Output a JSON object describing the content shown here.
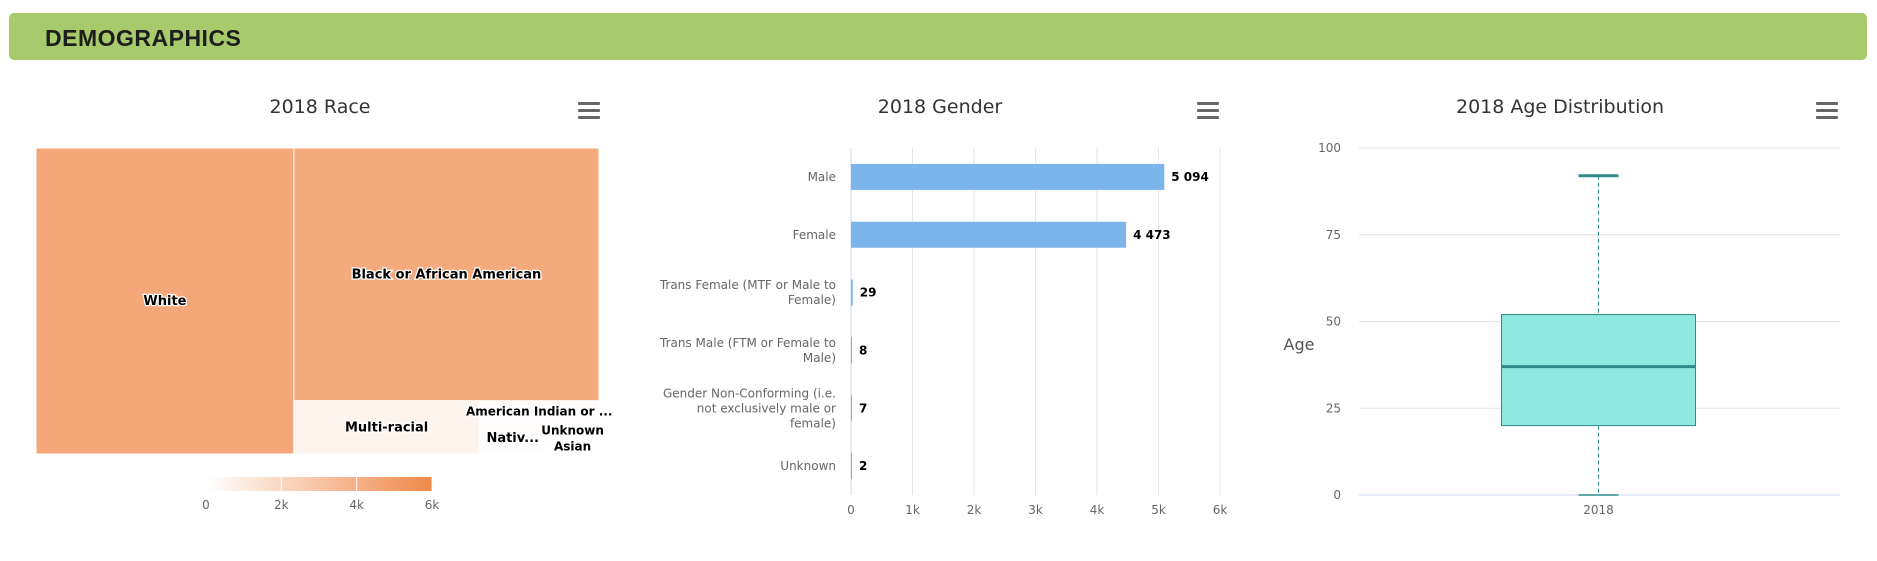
{
  "banner": {
    "title": "DEMOGRAPHICS"
  },
  "charts": {
    "race": {
      "title": "2018 Race",
      "menu_icon": "hamburger-menu-icon",
      "colorscale": {
        "min_color": "#ffffff",
        "max_color": "#f0894a",
        "ticks": [
          "0",
          "2k",
          "4k",
          "6k"
        ]
      }
    },
    "gender": {
      "title": "2018 Gender",
      "menu_icon": "hamburger-menu-icon"
    },
    "age": {
      "title": "2018 Age Distribution",
      "menu_icon": "hamburger-menu-icon",
      "ylabel": "Age"
    }
  },
  "chart_data": [
    {
      "type": "treemap",
      "title": "2018 Race",
      "colorscale_range": [
        0,
        6000
      ],
      "items": [
        {
          "name": "White",
          "value": 4400
        },
        {
          "name": "Black or African American",
          "value": 4300
        },
        {
          "name": "Multi-racial",
          "value": 550
        },
        {
          "name": "American Indian or ...",
          "value": 140,
          "short": "American Indian or ..."
        },
        {
          "name": "Nativ...",
          "value": 120,
          "short": "Nativ..."
        },
        {
          "name": "Unknown",
          "value": 50
        },
        {
          "name": "Asian",
          "value": 45
        }
      ]
    },
    {
      "type": "bar",
      "orientation": "horizontal",
      "title": "2018 Gender",
      "categories": [
        [
          "Male"
        ],
        [
          "Female"
        ],
        [
          "Trans Female (MTF or Male to",
          "Female)"
        ],
        [
          "Trans Male (FTM or Female to",
          "Male)"
        ],
        [
          "Gender Non-Conforming (i.e.",
          "not exclusively male or",
          "female)"
        ],
        [
          "Unknown"
        ]
      ],
      "values": [
        5094,
        4473,
        29,
        8,
        7,
        2
      ],
      "data_labels": [
        "5 094",
        "4 473",
        "29",
        "8",
        "7",
        "2"
      ],
      "xlim": [
        0,
        6000
      ],
      "xticks": [
        0,
        1000,
        2000,
        3000,
        4000,
        5000,
        6000
      ],
      "xtick_labels": [
        "0",
        "1k",
        "2k",
        "3k",
        "4k",
        "5k",
        "6k"
      ],
      "color": "#7cb5ec",
      "grid": true
    },
    {
      "type": "boxplot",
      "title": "2018 Age Distribution",
      "ylabel": "Age",
      "categories": [
        "2018"
      ],
      "ylim": [
        0,
        100
      ],
      "yticks": [
        0,
        25,
        50,
        75,
        100
      ],
      "box": {
        "min": 0,
        "q1": 20,
        "median": 37,
        "q3": 52,
        "max": 92
      },
      "fill": "#8fe8df",
      "stroke": "#2e8a8a",
      "grid": true
    }
  ]
}
